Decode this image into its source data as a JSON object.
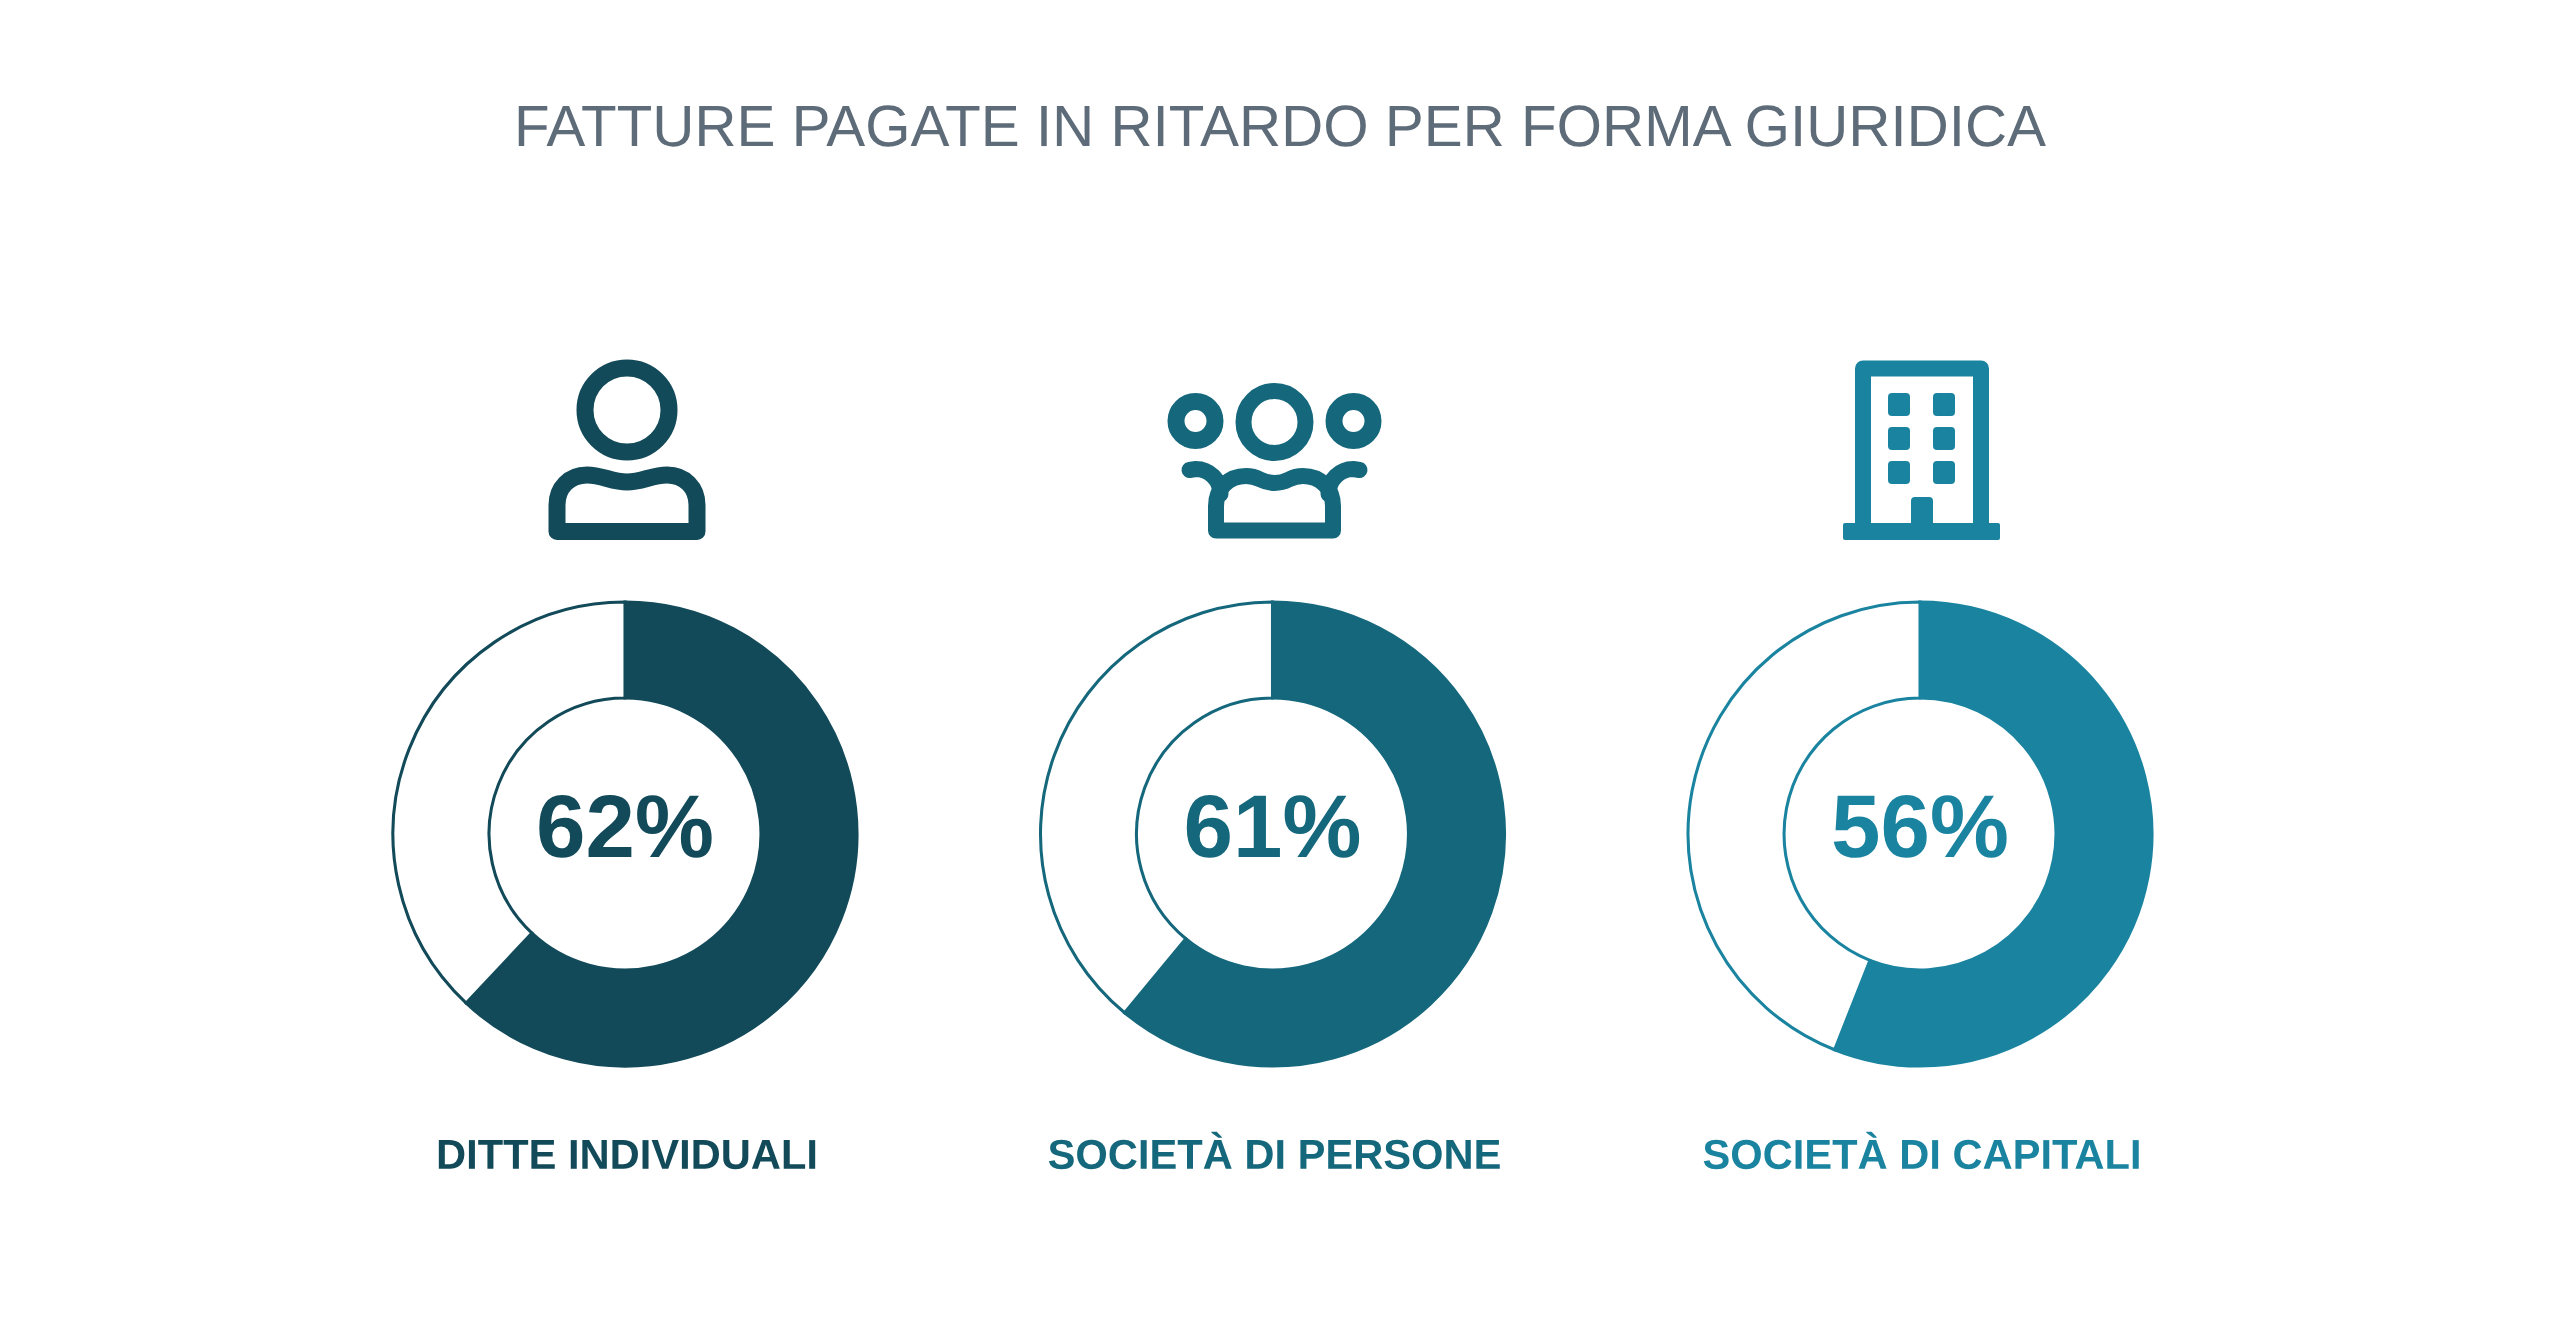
{
  "chart_data": [
    {
      "type": "donut",
      "title": "FATTURE PAGATE IN RITARDO PER FORMA GIURIDICA",
      "xlabel": "DITTE INDIVIDUALI",
      "categories": [
        null,
        null
      ],
      "values": [
        62,
        38
      ],
      "colors": [
        "#124a59",
        "#ffffff"
      ],
      "value_labels": [
        "62%",
        null
      ]
    },
    {
      "type": "donut",
      "xlabel": "SOCIETÀ DI PERSONE",
      "categories": [
        null,
        null
      ],
      "values": [
        61,
        39
      ],
      "colors": [
        "#15677c",
        "#ffffff"
      ],
      "value_labels": [
        "61%",
        null
      ]
    },
    {
      "type": "donut",
      "xlabel": "SOCIETÀ DI CAPITALI",
      "categories": [
        null,
        null
      ],
      "values": [
        56,
        44
      ],
      "colors": [
        "#1a84a0",
        "#ffffff"
      ],
      "value_labels": [
        "56%",
        null
      ]
    }
  ]
}
